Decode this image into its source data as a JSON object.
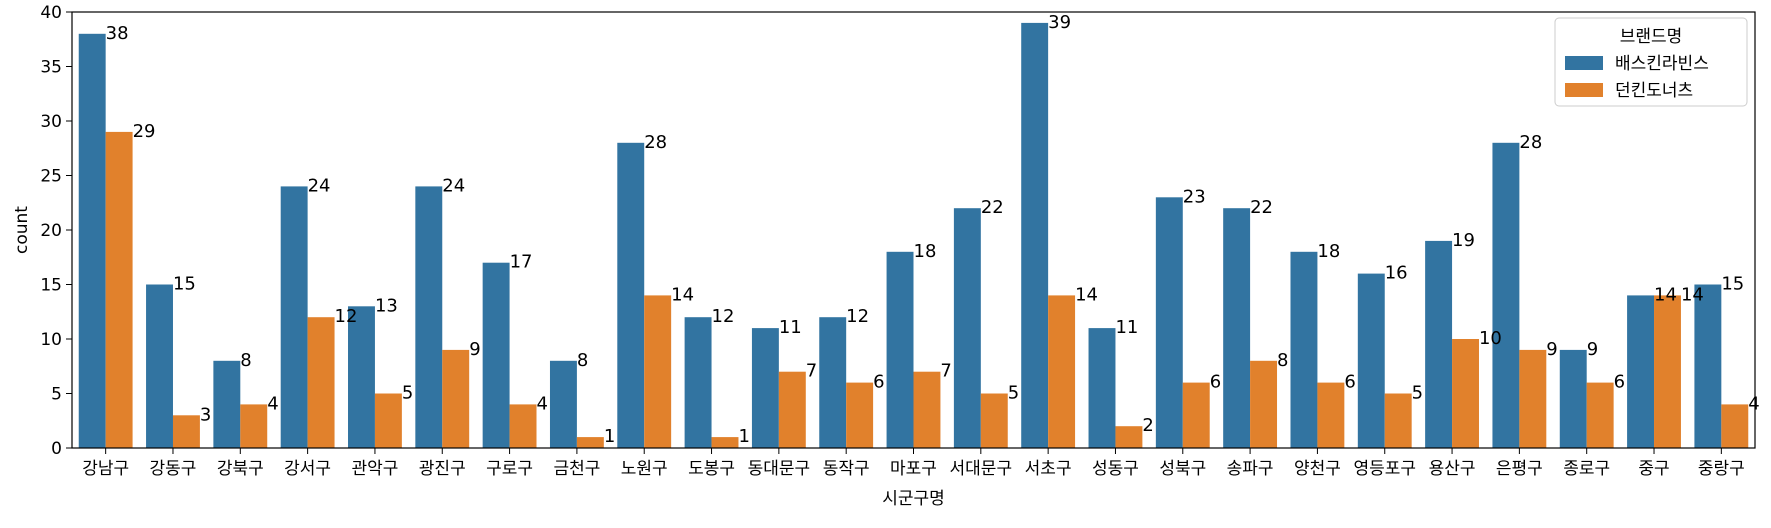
{
  "chart_data": {
    "type": "bar",
    "xlabel": "시군구명",
    "ylabel": "count",
    "ylim": [
      0,
      40
    ],
    "yticks": [
      0,
      5,
      10,
      15,
      20,
      25,
      30,
      35,
      40
    ],
    "grid": false,
    "legend_title": "브랜드명",
    "legend_position": "top-right",
    "categories": [
      "강남구",
      "강동구",
      "강북구",
      "강서구",
      "관악구",
      "광진구",
      "구로구",
      "금천구",
      "노원구",
      "도봉구",
      "동대문구",
      "동작구",
      "마포구",
      "서대문구",
      "서초구",
      "성동구",
      "성북구",
      "송파구",
      "양천구",
      "영등포구",
      "용산구",
      "은평구",
      "종로구",
      "중구",
      "중랑구"
    ],
    "series": [
      {
        "name": "배스킨라빈스",
        "color": "#3274a1",
        "values": [
          38,
          15,
          8,
          24,
          13,
          24,
          17,
          8,
          28,
          12,
          11,
          12,
          18,
          22,
          39,
          11,
          23,
          22,
          18,
          16,
          19,
          28,
          9,
          14,
          15
        ]
      },
      {
        "name": "던킨도너츠",
        "color": "#e1812c",
        "values": [
          29,
          3,
          4,
          12,
          5,
          9,
          4,
          1,
          14,
          1,
          7,
          6,
          7,
          5,
          14,
          2,
          6,
          8,
          6,
          5,
          10,
          9,
          6,
          14,
          4
        ]
      }
    ]
  }
}
